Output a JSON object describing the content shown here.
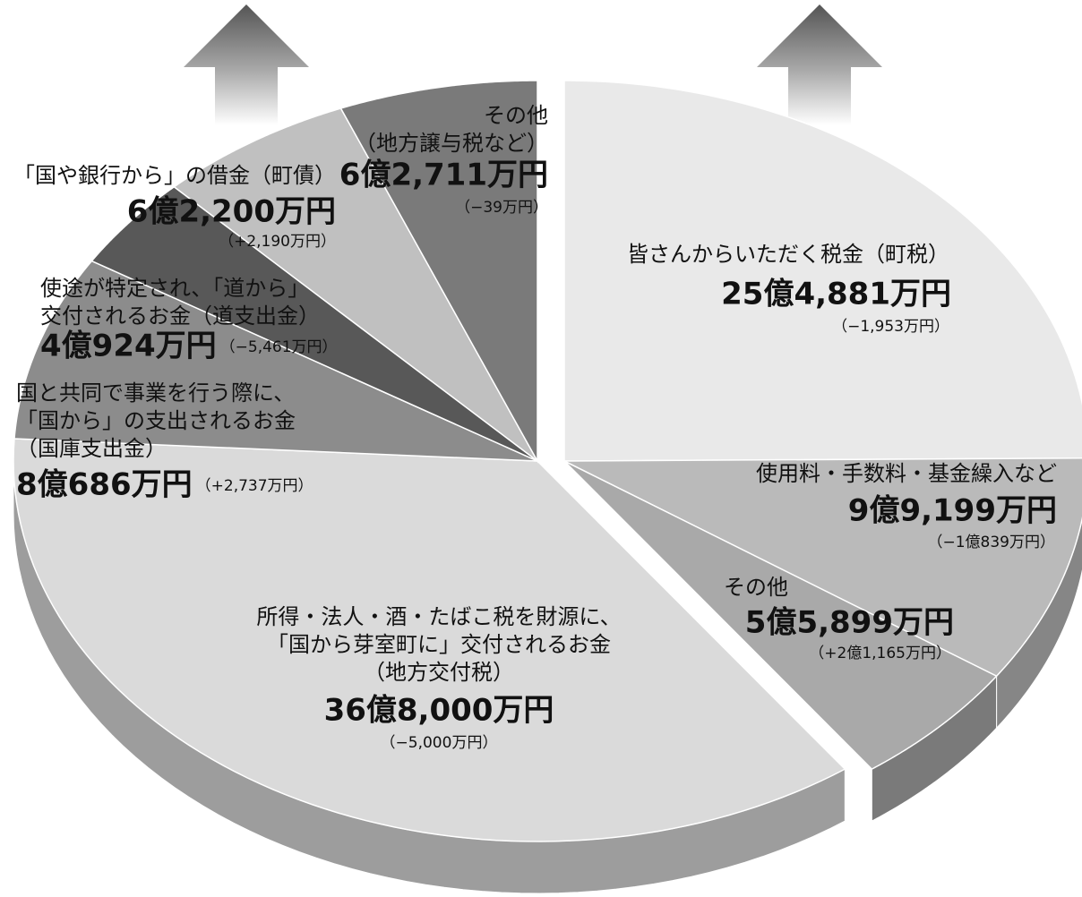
{
  "chart_data": {
    "type": "pie",
    "categories": [
      [
        "皆さんからいただく税金（町税）"
      ],
      [
        "使用料・手数料・基金繰入など"
      ],
      [
        "その他"
      ],
      [
        "所得・法人・酒・たばこ税を財源に、",
        "「国から芽室町に」交付されるお金",
        "（地方交付税）"
      ],
      [
        "国と共同で事業を行う際に、",
        "「国から」の支出されるお金",
        "（国庫支出金）"
      ],
      [
        "使途が特定され、「道から」",
        "交付されるお金（道支出金）"
      ],
      [
        "「国や銀行から」の借金（町債）"
      ],
      [
        "その他",
        "（地方譲与税など）"
      ]
    ],
    "values": [
      254881,
      99199,
      55899,
      368000,
      80686,
      40924,
      62200,
      62711
    ],
    "value_labels": [
      "25億4,881万円",
      "9億9,199万円",
      "5億5,899万円",
      "36億8,000万円",
      "8億686万円",
      "4億924万円",
      "6億2,200万円",
      "6億2,711万円"
    ],
    "annotations": [
      "（−1,953万円）",
      "（−1億839万円）",
      "（+2億1,165万円）",
      "（−5,000万円）",
      "（+2,737万円）",
      "（−5,461万円）",
      "（+2,190万円）",
      "（−39万円）"
    ],
    "colors": [
      "#e9e9e9",
      "#bababa",
      "#a9a9a9",
      "#dadada",
      "#8c8c8c",
      "#585858",
      "#c0c0c0",
      "#7a7a7a"
    ],
    "exploded": [
      0,
      1,
      2
    ]
  }
}
